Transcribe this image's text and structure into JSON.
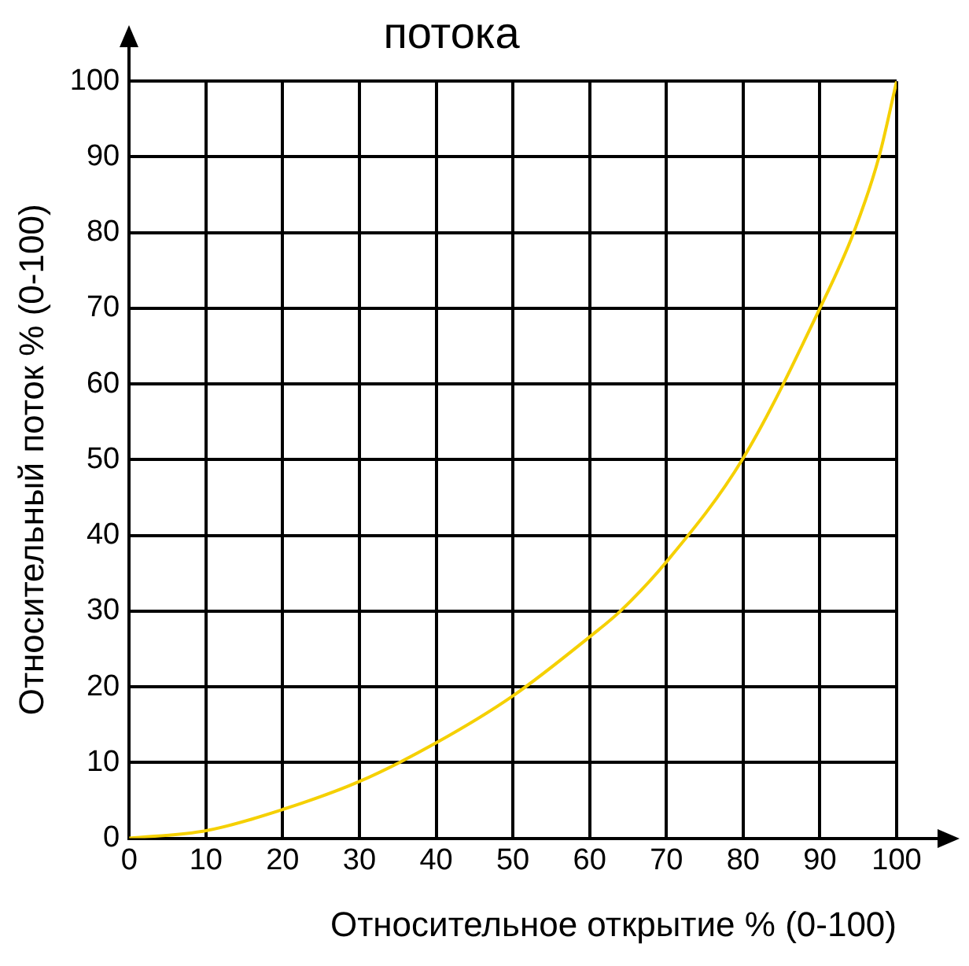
{
  "chart_data": {
    "type": "line",
    "title": "потока",
    "xlabel": "Относительное открытие % (0-100)",
    "ylabel": "Относительный поток % (0-100)",
    "x": [
      0,
      10,
      20,
      30,
      40,
      50,
      60,
      64,
      70,
      80,
      90,
      94.4,
      97.7,
      100
    ],
    "series": [
      {
        "color": "#f5d000",
        "values": [
          0,
          1,
          3.8,
          7.5,
          12.6,
          18.8,
          26.6,
          30,
          36.5,
          50.2,
          70,
          80,
          90,
          100
        ]
      }
    ],
    "xlim": [
      0,
      100
    ],
    "ylim": [
      0,
      100
    ],
    "xticks": [
      0,
      10,
      20,
      30,
      40,
      50,
      60,
      70,
      80,
      90,
      100
    ],
    "yticks": [
      0,
      10,
      20,
      30,
      40,
      50,
      60,
      70,
      80,
      90,
      100
    ],
    "grid": true,
    "legend": false,
    "marker": "none",
    "line_style": "solid"
  }
}
